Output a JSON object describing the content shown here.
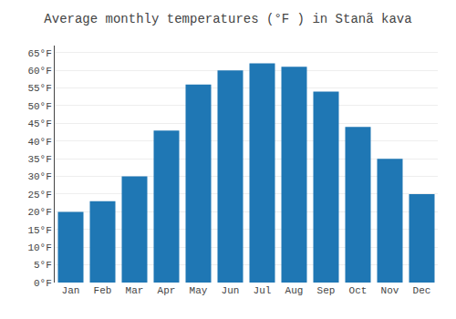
{
  "chart_data": {
    "type": "bar",
    "title": "Average monthly temperatures (°F ) in Stanã kava",
    "categories": [
      "Jan",
      "Feb",
      "Mar",
      "Apr",
      "May",
      "Jun",
      "Jul",
      "Aug",
      "Sep",
      "Oct",
      "Nov",
      "Dec"
    ],
    "values": [
      20,
      23,
      30,
      43,
      56,
      60,
      62,
      61,
      54,
      44,
      35,
      25
    ],
    "ylim": [
      0,
      67
    ],
    "yticks": [
      {
        "value": 0,
        "label": "0°F"
      },
      {
        "value": 5,
        "label": "5°F"
      },
      {
        "value": 10,
        "label": "10°F"
      },
      {
        "value": 15,
        "label": "15°F"
      },
      {
        "value": 20,
        "label": "20°F"
      },
      {
        "value": 25,
        "label": "25°F"
      },
      {
        "value": 30,
        "label": "30°F"
      },
      {
        "value": 35,
        "label": "35°F"
      },
      {
        "value": 40,
        "label": "40°F"
      },
      {
        "value": 45,
        "label": "45°F"
      },
      {
        "value": 50,
        "label": "50°F"
      },
      {
        "value": 55,
        "label": "55°F"
      },
      {
        "value": 60,
        "label": "60°F"
      },
      {
        "value": 65,
        "label": "65°F"
      }
    ],
    "grid": true
  }
}
